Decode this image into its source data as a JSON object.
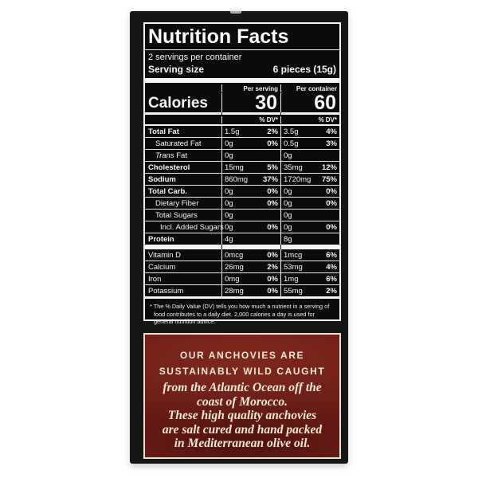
{
  "panel": {
    "title": "Nutrition Facts",
    "servings_per_container": "2 servings per container",
    "serving_size_label": "Serving size",
    "serving_size_value": "6 pieces (15g)",
    "col_serving_header": "Per serving",
    "col_container_header": "Per container",
    "calories_label": "Calories",
    "calories_per_serving": "30",
    "calories_per_container": "60",
    "dv_header": "% DV*",
    "rows": [
      {
        "name": "Total Fat",
        "s_amt": "1.5g",
        "s_dv": "2%",
        "c_amt": "3.5g",
        "c_dv": "4%"
      },
      {
        "name": "Saturated Fat",
        "s_amt": "0g",
        "s_dv": "0%",
        "c_amt": "0.5g",
        "c_dv": "3%"
      },
      {
        "name_italic": "Trans",
        "name_rest": " Fat",
        "s_amt": "0g",
        "s_dv": "",
        "c_amt": "0g",
        "c_dv": ""
      },
      {
        "name": "Cholesterol",
        "s_amt": "15mg",
        "s_dv": "5%",
        "c_amt": "35mg",
        "c_dv": "12%"
      },
      {
        "name": "Sodium",
        "s_amt": "860mg",
        "s_dv": "37%",
        "c_amt": "1720mg",
        "c_dv": "75%"
      },
      {
        "name": "Total Carb.",
        "s_amt": "0g",
        "s_dv": "0%",
        "c_amt": "0g",
        "c_dv": "0%"
      },
      {
        "name": "Dietary Fiber",
        "s_amt": "0g",
        "s_dv": "0%",
        "c_amt": "0g",
        "c_dv": "0%"
      },
      {
        "name": "Total Sugars",
        "s_amt": "0g",
        "s_dv": "",
        "c_amt": "0g",
        "c_dv": ""
      },
      {
        "name": "Incl. Added Sugars",
        "s_amt": "0g",
        "s_dv": "0%",
        "c_amt": "0g",
        "c_dv": "0%"
      },
      {
        "name": "Protein",
        "s_amt": "4g",
        "s_dv": "",
        "c_amt": "8g",
        "c_dv": ""
      }
    ],
    "vitamins": [
      {
        "name": "Vitamin D",
        "s_amt": "0mcg",
        "s_dv": "0%",
        "c_amt": "1mcg",
        "c_dv": "6%"
      },
      {
        "name": "Calcium",
        "s_amt": "26mg",
        "s_dv": "2%",
        "c_amt": "53mg",
        "c_dv": "4%"
      },
      {
        "name": "Iron",
        "s_amt": "0mg",
        "s_dv": "0%",
        "c_amt": "1mg",
        "c_dv": "6%"
      },
      {
        "name": "Potassium",
        "s_amt": "28mg",
        "s_dv": "0%",
        "c_amt": "55mg",
        "c_dv": "2%"
      }
    ],
    "footnote": "* The % Daily Value (DV) tells you how much a nutrient in a serving of food contributes to a daily diet. 2,000 calories a day is used for general nutrition advice."
  },
  "marketing": {
    "caps_lines": [
      "OUR ANCHOVIES ARE",
      "SUSTAINABLY WILD CAUGHT"
    ],
    "script_lines": [
      "from the Atlantic Ocean off the",
      "coast of Morocco.",
      "These high quality anchovies",
      "are salt cured and hand packed",
      "in Mediterranean olive oil."
    ],
    "colors": {
      "box_background": "#6e1d16",
      "box_border": "#e9e1cf",
      "text": "#f2e9d6",
      "package_background": "#161616",
      "panel_background": "#0b0b0b",
      "panel_text": "#f6f6f6"
    }
  }
}
